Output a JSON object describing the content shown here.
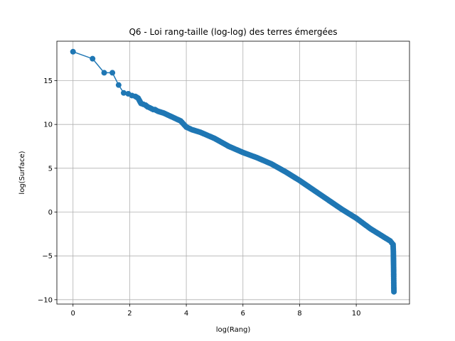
{
  "chart_data": {
    "type": "line",
    "title": "Q6 - Loi rang-taille (log-log) des terres émergées",
    "xlabel": "log(Rang)",
    "ylabel": "log(Surface)",
    "xlim": [
      -0.57,
      11.88
    ],
    "ylim": [
      -10.5,
      19.5
    ],
    "x_ticks": [
      0,
      2,
      4,
      6,
      8,
      10
    ],
    "y_ticks": [
      -10,
      -5,
      0,
      5,
      10,
      15
    ],
    "x_tick_labels": [
      "0",
      "2",
      "4",
      "6",
      "8",
      "10"
    ],
    "y_tick_labels": [
      "−10",
      "−5",
      "0",
      "5",
      "10",
      "15"
    ],
    "grid": true,
    "series_color": "#1f77b4",
    "series": [
      {
        "x": [
          0.0,
          0.69,
          1.1,
          1.39,
          1.61,
          1.79,
          1.95,
          2.08,
          2.2,
          2.3,
          2.4,
          2.48,
          2.56,
          2.64,
          2.71,
          2.77,
          2.83,
          2.89,
          2.94,
          3.0,
          3.2,
          3.4,
          3.6,
          3.8,
          4.0,
          4.2,
          4.5,
          5.0,
          5.5,
          6.0,
          6.5,
          7.0,
          7.5,
          8.0,
          8.5,
          9.0,
          9.5,
          10.0,
          10.5,
          10.9,
          11.1,
          11.2,
          11.25,
          11.3,
          11.31,
          11.315,
          11.32,
          11.322,
          11.325,
          11.327,
          11.33
        ],
        "y": [
          18.3,
          17.5,
          15.9,
          15.9,
          14.5,
          13.6,
          13.5,
          13.3,
          13.2,
          13.0,
          12.4,
          12.3,
          12.2,
          12.0,
          11.9,
          11.8,
          11.7,
          11.7,
          11.6,
          11.5,
          11.3,
          11.0,
          10.7,
          10.4,
          9.7,
          9.4,
          9.1,
          8.4,
          7.5,
          6.8,
          6.2,
          5.5,
          4.6,
          3.6,
          2.5,
          1.4,
          0.3,
          -0.7,
          -1.9,
          -2.7,
          -3.1,
          -3.3,
          -3.5,
          -3.7,
          -4.5,
          -5.5,
          -6.5,
          -7.2,
          -8.0,
          -8.6,
          -9.1
        ]
      }
    ]
  }
}
